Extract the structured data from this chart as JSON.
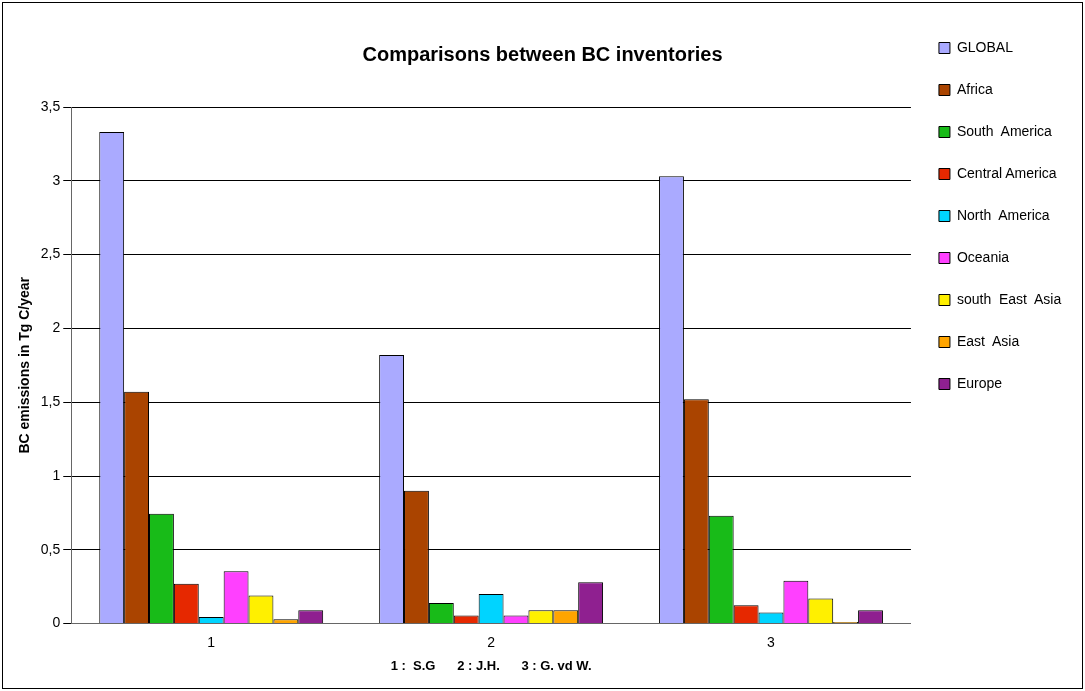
{
  "chart_data": {
    "type": "bar",
    "title": "Comparisons between BC inventories",
    "xlabel": "1 :  S.G      2 : J.H.      3 : G. vd W.",
    "ylabel": "BC emissions in Tg C/year",
    "categories": [
      "1",
      "2",
      "3"
    ],
    "series": [
      {
        "name": "GLOBAL",
        "color": "#aaaaff",
        "values": [
          3.33,
          1.82,
          3.03
        ]
      },
      {
        "name": "Africa",
        "color": "#aa4400",
        "values": [
          1.57,
          0.9,
          1.52
        ]
      },
      {
        "name": "South  America",
        "color": "#18bb18",
        "values": [
          0.745,
          0.14,
          0.73
        ]
      },
      {
        "name": "Central America",
        "color": "#e62800",
        "values": [
          0.27,
          0.055,
          0.125
        ]
      },
      {
        "name": "North  America",
        "color": "#00d4ff",
        "values": [
          0.045,
          0.2,
          0.075
        ]
      },
      {
        "name": "Oceania",
        "color": "#ff40ff",
        "values": [
          0.355,
          0.055,
          0.29
        ]
      },
      {
        "name": "south  East  Asia",
        "color": "#fff000",
        "values": [
          0.19,
          0.09,
          0.17
        ]
      },
      {
        "name": "East  Asia",
        "color": "#ffa500",
        "values": [
          0.03,
          0.09,
          0.01
        ]
      },
      {
        "name": "Europe",
        "color": "#8f2090",
        "values": [
          0.09,
          0.28,
          0.09
        ]
      }
    ],
    "ylim": [
      0,
      3.5
    ],
    "yticks": [
      {
        "value": 0,
        "label": "0"
      },
      {
        "value": 0.5,
        "label": "0,5"
      },
      {
        "value": 1,
        "label": "1"
      },
      {
        "value": 1.5,
        "label": "1,5"
      },
      {
        "value": 2,
        "label": "2"
      },
      {
        "value": 2.5,
        "label": "2,5"
      },
      {
        "value": 3,
        "label": "3"
      },
      {
        "value": 3.5,
        "label": "3,5"
      }
    ],
    "grid": "y",
    "legend": "right"
  }
}
